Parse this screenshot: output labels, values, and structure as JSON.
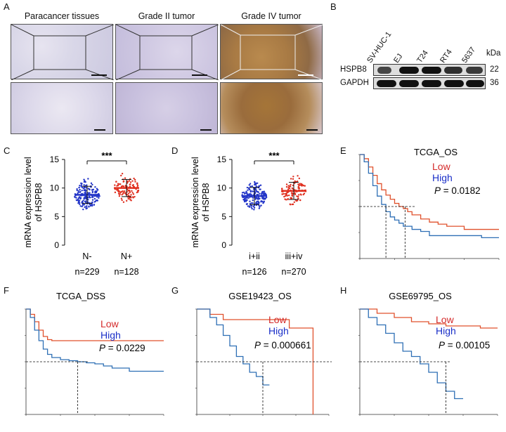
{
  "panels": {
    "A": "A",
    "B": "B",
    "C": "C",
    "D": "D",
    "E": "E",
    "F": "F",
    "G": "G",
    "H": "H"
  },
  "ihc": {
    "columns": [
      "Paracancer tissues",
      "Grade II tumor",
      "Grade IV tumor"
    ]
  },
  "western": {
    "lanes": [
      "SV-HUC-1",
      "EJ",
      "T24",
      "RT4",
      "5637"
    ],
    "unit": "kDa",
    "rows": [
      {
        "label": "HSPB8",
        "kda": "22"
      },
      {
        "label": "GAPDH",
        "kda": "36"
      }
    ]
  },
  "chart_data": [
    {
      "panel": "C",
      "type": "scatter",
      "ylabel_lines": [
        "mRNA expression level",
        "of HSPB8"
      ],
      "ylim": [
        0,
        15
      ],
      "yticks": [
        "0",
        "5",
        "10",
        "15"
      ],
      "groups": [
        {
          "name": "N-",
          "n": "n=229",
          "median": 8.8,
          "color": "#2436c8"
        },
        {
          "name": "N+",
          "n": "n=128",
          "median": 10.0,
          "color": "#e03020"
        }
      ],
      "significance": "***"
    },
    {
      "panel": "D",
      "type": "scatter",
      "ylabel_lines": [
        "mRNA expression level",
        "of HSPB8"
      ],
      "ylim": [
        0,
        15
      ],
      "yticks": [
        "0",
        "5",
        "10",
        "15"
      ],
      "groups": [
        {
          "name": "i+ii",
          "n": "n=126",
          "median": 8.6,
          "color": "#2436c8"
        },
        {
          "name": "iii+iv",
          "n": "n=270",
          "median": 9.5,
          "color": "#e03020"
        }
      ],
      "significance": "***"
    },
    {
      "panel": "E",
      "type": "line",
      "title": "TCGA_OS",
      "legend": [
        {
          "name": "Low",
          "color": "#d42a2a"
        },
        {
          "name": "High",
          "color": "#1a2fc8"
        }
      ],
      "pvalue": "P = 0.0182",
      "xlim": [
        0,
        160
      ],
      "ylim": [
        0,
        1
      ],
      "series": [
        {
          "name": "Low",
          "color": "#e0512c",
          "x": [
            0,
            5,
            10,
            15,
            20,
            25,
            30,
            35,
            40,
            45,
            50,
            55,
            60,
            70,
            80,
            90,
            100,
            120,
            140,
            160
          ],
          "y": [
            1,
            0.96,
            0.88,
            0.8,
            0.72,
            0.66,
            0.61,
            0.57,
            0.53,
            0.5,
            0.48,
            0.45,
            0.42,
            0.38,
            0.35,
            0.33,
            0.31,
            0.28,
            0.28,
            0.28
          ]
        },
        {
          "name": "High",
          "color": "#2e6fb5",
          "x": [
            0,
            5,
            10,
            15,
            20,
            25,
            30,
            35,
            40,
            45,
            50,
            60,
            70,
            80,
            100,
            120,
            140,
            160
          ],
          "y": [
            1,
            0.93,
            0.82,
            0.7,
            0.6,
            0.52,
            0.45,
            0.4,
            0.37,
            0.34,
            0.31,
            0.28,
            0.26,
            0.22,
            0.22,
            0.22,
            0.2,
            0.2
          ]
        }
      ]
    },
    {
      "panel": "F",
      "type": "line",
      "title": "TCGA_DSS",
      "legend": [
        {
          "name": "Low",
          "color": "#d42a2a"
        },
        {
          "name": "High",
          "color": "#1a2fc8"
        }
      ],
      "pvalue": "P = 0.0229",
      "xlim": [
        0,
        160
      ],
      "ylim": [
        0,
        1
      ],
      "series": [
        {
          "name": "Low",
          "color": "#e0512c",
          "x": [
            0,
            5,
            10,
            15,
            20,
            25,
            30,
            40,
            60,
            80,
            100,
            120,
            160
          ],
          "y": [
            1,
            0.95,
            0.88,
            0.8,
            0.74,
            0.71,
            0.7,
            0.7,
            0.7,
            0.7,
            0.7,
            0.7,
            0.7
          ]
        },
        {
          "name": "High",
          "color": "#2e6fb5",
          "x": [
            0,
            5,
            10,
            15,
            20,
            25,
            30,
            40,
            50,
            60,
            70,
            80,
            90,
            100,
            120,
            140,
            160
          ],
          "y": [
            1,
            0.92,
            0.8,
            0.7,
            0.62,
            0.57,
            0.54,
            0.52,
            0.51,
            0.5,
            0.49,
            0.48,
            0.46,
            0.44,
            0.41,
            0.41,
            0.41
          ]
        }
      ]
    },
    {
      "panel": "G",
      "type": "line",
      "title": "GSE19423_OS",
      "legend": [
        {
          "name": "Low",
          "color": "#d42a2a"
        },
        {
          "name": "High",
          "color": "#1a2fc8"
        }
      ],
      "pvalue": "P = 0.000661",
      "xlim": [
        0,
        100
      ],
      "ylim": [
        0,
        1
      ],
      "series": [
        {
          "name": "Low",
          "color": "#e0512c",
          "x": [
            0,
            10,
            20,
            40,
            50,
            60,
            70,
            80,
            88,
            88
          ],
          "y": [
            1,
            0.95,
            0.9,
            0.9,
            0.9,
            0.9,
            0.82,
            0.82,
            0.82,
            0.0
          ]
        },
        {
          "name": "High",
          "color": "#2e6fb5",
          "x": [
            0,
            10,
            15,
            20,
            25,
            30,
            35,
            40,
            45,
            50,
            55
          ],
          "y": [
            1,
            0.92,
            0.85,
            0.75,
            0.65,
            0.55,
            0.48,
            0.4,
            0.36,
            0.28,
            0.28
          ]
        }
      ]
    },
    {
      "panel": "H",
      "type": "line",
      "title": "GSE69795_OS",
      "legend": [
        {
          "name": "Low",
          "color": "#d42a2a"
        },
        {
          "name": "High",
          "color": "#1a2fc8"
        }
      ],
      "pvalue": "P = 0.00105",
      "xlim": [
        0,
        80
      ],
      "ylim": [
        0,
        1
      ],
      "series": [
        {
          "name": "Low",
          "color": "#e0512c",
          "x": [
            0,
            10,
            20,
            30,
            40,
            50,
            60,
            70,
            80
          ],
          "y": [
            1,
            0.96,
            0.92,
            0.88,
            0.86,
            0.84,
            0.84,
            0.82,
            0.82
          ]
        },
        {
          "name": "High",
          "color": "#2e6fb5",
          "x": [
            0,
            5,
            10,
            15,
            20,
            25,
            30,
            35,
            40,
            45,
            50,
            55,
            60
          ],
          "y": [
            1,
            0.92,
            0.85,
            0.77,
            0.68,
            0.6,
            0.55,
            0.48,
            0.4,
            0.3,
            0.22,
            0.15,
            0.15
          ]
        }
      ]
    }
  ]
}
